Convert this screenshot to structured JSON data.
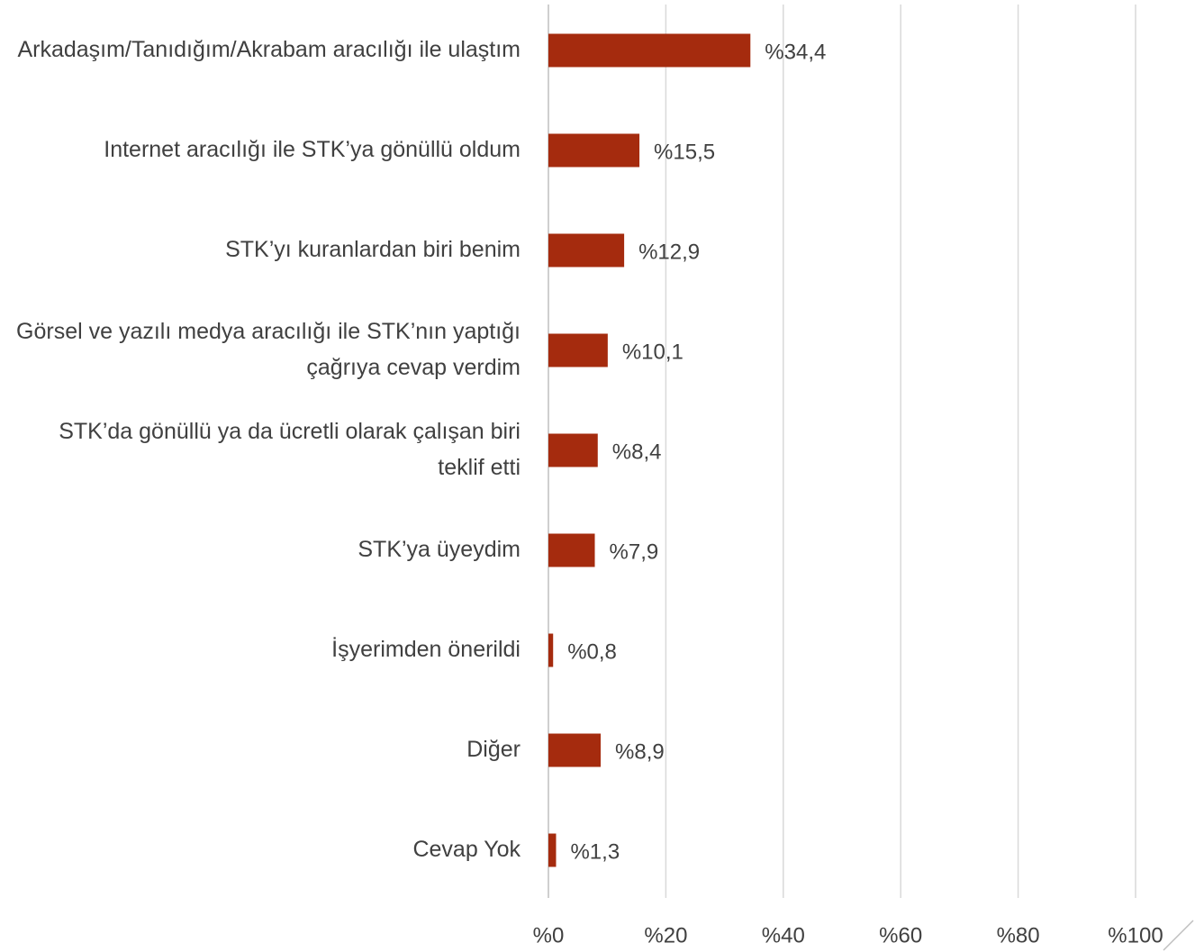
{
  "chart_data": {
    "type": "bar",
    "orientation": "horizontal",
    "categories": [
      "Arkadaşım/Tanıdığım/Akrabam aracılığı ile ulaştım",
      "Internet aracılığı ile STK’ya gönüllü oldum",
      "STK’yı kuranlardan biri benim",
      "Görsel ve yazılı medya aracılığı ile STK’nın yaptığı çağrıya cevap verdim",
      "STK’da gönüllü ya da ücretli olarak çalışan biri teklif etti",
      "STK’ya üyeydim",
      "İşyerimden önerildi",
      "Diğer",
      "Cevap Yok"
    ],
    "values": [
      34.4,
      15.5,
      12.9,
      10.1,
      8.4,
      7.9,
      0.8,
      8.9,
      1.3
    ],
    "value_labels": [
      "%34,4",
      "%15,5",
      "%12,9",
      "%10,1",
      "%8,4",
      "%7,9",
      "%0,8",
      "%8,9",
      "%1,3"
    ],
    "color": "#a52b0e",
    "xlim": [
      0,
      100
    ],
    "xticks": [
      {
        "value": 0,
        "label": "%0"
      },
      {
        "value": 20,
        "label": "%20"
      },
      {
        "value": 40,
        "label": "%40"
      },
      {
        "value": 60,
        "label": "%60"
      },
      {
        "value": 80,
        "label": "%80"
      },
      {
        "value": 100,
        "label": "%100"
      }
    ],
    "grid": true
  }
}
